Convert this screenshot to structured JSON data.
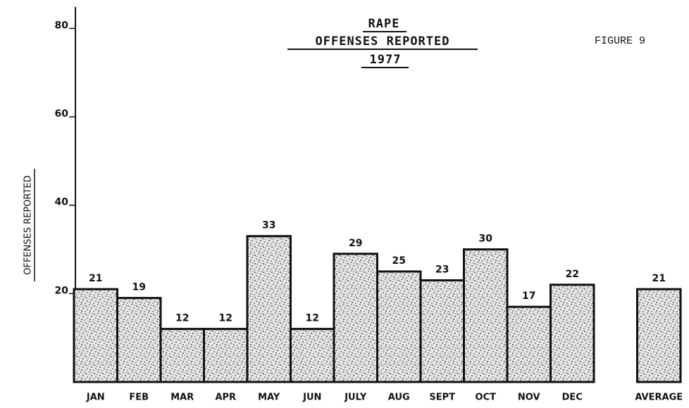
{
  "chart_data": {
    "type": "bar",
    "title": [
      "RAPE",
      "OFFENSES REPORTED",
      "1977"
    ],
    "annotation": "FIGURE 9",
    "y_label": "OFFENSES REPORTED",
    "categories": [
      "JAN",
      "FEB",
      "MAR",
      "APR",
      "MAY",
      "JUN",
      "JULY",
      "AUG",
      "SEPT",
      "OCT",
      "NOV",
      "DEC",
      "AVERAGE"
    ],
    "values": [
      21,
      19,
      12,
      12,
      33,
      12,
      29,
      25,
      23,
      30,
      17,
      22,
      21
    ],
    "color": "#333333",
    "ylim": [
      0,
      85
    ],
    "yticks": [
      20,
      40,
      60,
      80
    ],
    "grid": false
  }
}
